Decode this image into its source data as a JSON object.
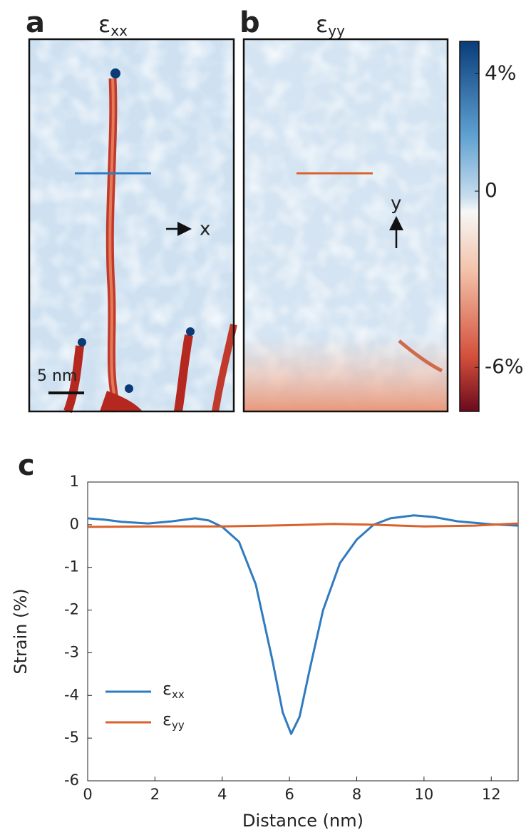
{
  "panels": {
    "a": {
      "label": "a",
      "symbol": "ε",
      "subscript": "xx",
      "scalebar": "5 nm",
      "axis_label": "x"
    },
    "b": {
      "label": "b",
      "symbol": "ε",
      "subscript": "yy",
      "axis_label": "y"
    },
    "c": {
      "label": "c"
    }
  },
  "colorbar": {
    "lim": [
      -7.5,
      5.1
    ],
    "ticks": [
      {
        "value": 4,
        "label": "4%"
      },
      0,
      {
        "value": -6,
        "label": "-6%"
      }
    ]
  },
  "chart_data": {
    "type": "line",
    "xlabel": "Distance (nm)",
    "ylabel": "Strain (%)",
    "xlim": [
      0,
      12.8
    ],
    "ylim": [
      -6,
      1
    ],
    "xticks": [
      0,
      2,
      4,
      6,
      8,
      10,
      12
    ],
    "yticks": [
      1,
      0,
      -1,
      -2,
      -3,
      -4,
      -5,
      -6
    ],
    "legend": "lower left",
    "series": [
      {
        "name": "ε",
        "subscript": "xx",
        "color": "#2f7bbf",
        "x": [
          0,
          0.5,
          1,
          1.8,
          2.5,
          3.2,
          3.6,
          4,
          4.5,
          5,
          5.5,
          5.8,
          6.05,
          6.3,
          6.6,
          7,
          7.5,
          8,
          8.5,
          9,
          9.7,
          10.3,
          11,
          12,
          12.8
        ],
        "values": [
          0.15,
          0.12,
          0.07,
          0.03,
          0.08,
          0.15,
          0.1,
          -0.05,
          -0.4,
          -1.4,
          -3.2,
          -4.4,
          -4.9,
          -4.5,
          -3.4,
          -2.0,
          -0.9,
          -0.35,
          0,
          0.15,
          0.22,
          0.18,
          0.08,
          0.01,
          -0.02
        ]
      },
      {
        "name": "ε",
        "subscript": "yy",
        "color": "#d9622b",
        "x": [
          0,
          2,
          4,
          6,
          7.3,
          8.5,
          10,
          11.5,
          12.8
        ],
        "values": [
          -0.05,
          -0.04,
          -0.04,
          -0.01,
          0.02,
          0,
          -0.04,
          -0.02,
          0.03
        ]
      }
    ]
  }
}
